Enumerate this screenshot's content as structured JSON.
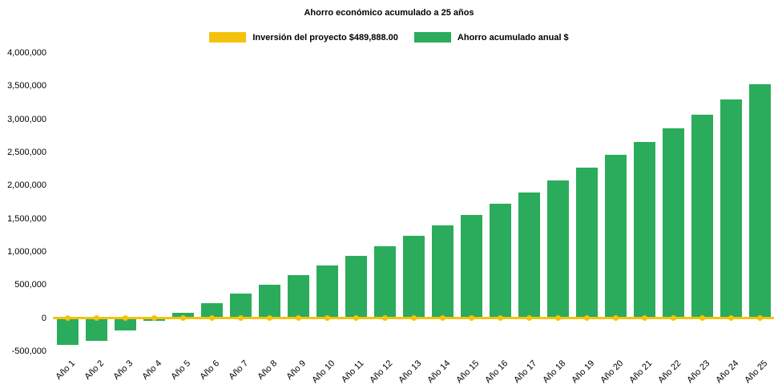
{
  "chart_data": {
    "type": "bar",
    "title": "Ahorro económico acumulado a 25 años",
    "categories": [
      "Año 1",
      "Año 2",
      "Año 3",
      "Año 4",
      "Año 5",
      "Año 6",
      "Año 7",
      "Año 8",
      "Año 9",
      "Año 10",
      "Año 11",
      "Año 12",
      "Año 13",
      "Año 14",
      "Año 15",
      "Año 16",
      "Año 17",
      "Año 18",
      "Año 19",
      "Año 20",
      "Año 21",
      "Año 22",
      "Año 23",
      "Año 24",
      "Año 25"
    ],
    "series": [
      {
        "name": "Inversión del proyecto $489,888.00",
        "type": "line",
        "color": "#F4C20D",
        "values": [
          0,
          0,
          0,
          0,
          0,
          0,
          0,
          0,
          0,
          0,
          0,
          0,
          0,
          0,
          0,
          0,
          0,
          0,
          0,
          0,
          0,
          0,
          0,
          0,
          0
        ]
      },
      {
        "name": "Ahorro acumulado anual $",
        "type": "bar",
        "color": "#2BAC5C",
        "values": [
          -400000,
          -340000,
          -190000,
          -40000,
          80000,
          230000,
          370000,
          510000,
          650000,
          800000,
          940000,
          1080000,
          1240000,
          1400000,
          1560000,
          1730000,
          1900000,
          2080000,
          2270000,
          2460000,
          2660000,
          2860000,
          3070000,
          3300000,
          3530000
        ]
      }
    ],
    "yaxis": {
      "min": -500000,
      "max": 4000000,
      "step": 500000,
      "ticks": [
        4000000,
        3500000,
        3000000,
        2500000,
        2000000,
        1500000,
        1000000,
        500000,
        0,
        -500000
      ],
      "tick_format": "thousands-comma"
    },
    "legend_position": "top",
    "grid": false,
    "xlabel_rotation_deg": -45
  },
  "colors": {
    "background": "#FFFFFF",
    "text": "#000000",
    "bar_green": "#2BAC5C",
    "line_yellow": "#F4C20D",
    "zero_axis": "#8A8A8A"
  }
}
